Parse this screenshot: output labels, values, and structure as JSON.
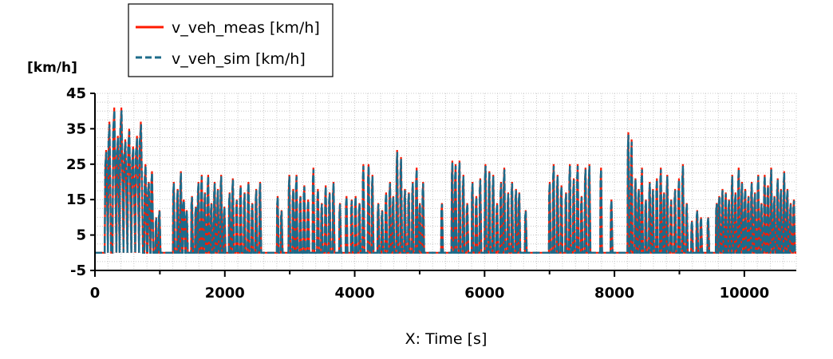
{
  "chart_data": {
    "type": "line",
    "title": "",
    "xlabel": "X: Time [s]",
    "ylabel": "[km/h]",
    "xlim": [
      0,
      10800
    ],
    "ylim": [
      -5,
      45
    ],
    "x_ticks": [
      0,
      2000,
      4000,
      6000,
      8000,
      10000
    ],
    "x_tick_labels": [
      "0",
      "2000",
      "4000",
      "6000",
      "8000",
      "10000"
    ],
    "y_ticks": [
      -5,
      5,
      15,
      25,
      35,
      45
    ],
    "y_tick_labels": [
      "-5",
      "5",
      "15",
      "25",
      "35",
      "45"
    ],
    "grid": true,
    "legend_position": "top-left",
    "colors": {
      "meas": "#ff1a00",
      "sim": "#1d6b8a"
    },
    "series": [
      {
        "name": "v_veh_meas [km/h]",
        "style": "solid"
      },
      {
        "name": "v_veh_sim [km/h]",
        "style": "dashed"
      }
    ],
    "trips": [
      [
        150,
        200,
        29
      ],
      [
        200,
        250,
        37
      ],
      [
        270,
        330,
        41
      ],
      [
        330,
        380,
        33
      ],
      [
        380,
        440,
        41
      ],
      [
        440,
        500,
        32
      ],
      [
        500,
        560,
        35
      ],
      [
        560,
        620,
        30
      ],
      [
        620,
        680,
        33
      ],
      [
        680,
        740,
        37
      ],
      [
        760,
        800,
        25
      ],
      [
        810,
        850,
        20
      ],
      [
        860,
        900,
        23
      ],
      [
        930,
        960,
        10
      ],
      [
        980,
        1010,
        12
      ],
      [
        1200,
        1230,
        20
      ],
      [
        1260,
        1290,
        18
      ],
      [
        1310,
        1340,
        23
      ],
      [
        1350,
        1390,
        15
      ],
      [
        1400,
        1430,
        12
      ],
      [
        1480,
        1510,
        16
      ],
      [
        1540,
        1570,
        13
      ],
      [
        1580,
        1610,
        20
      ],
      [
        1630,
        1660,
        22
      ],
      [
        1680,
        1710,
        17
      ],
      [
        1730,
        1760,
        22
      ],
      [
        1780,
        1810,
        14
      ],
      [
        1830,
        1860,
        20
      ],
      [
        1880,
        1910,
        18
      ],
      [
        1930,
        1960,
        22
      ],
      [
        1980,
        2010,
        13
      ],
      [
        2060,
        2090,
        17
      ],
      [
        2110,
        2140,
        21
      ],
      [
        2170,
        2200,
        15
      ],
      [
        2230,
        2260,
        19
      ],
      [
        2290,
        2320,
        17
      ],
      [
        2350,
        2380,
        20
      ],
      [
        2410,
        2440,
        14
      ],
      [
        2470,
        2500,
        18
      ],
      [
        2530,
        2560,
        20
      ],
      [
        2800,
        2830,
        16
      ],
      [
        2860,
        2890,
        12
      ],
      [
        2980,
        3010,
        22
      ],
      [
        3040,
        3070,
        18
      ],
      [
        3090,
        3120,
        22
      ],
      [
        3150,
        3180,
        16
      ],
      [
        3210,
        3240,
        19
      ],
      [
        3270,
        3300,
        15
      ],
      [
        3350,
        3380,
        24
      ],
      [
        3420,
        3450,
        18
      ],
      [
        3480,
        3510,
        14
      ],
      [
        3540,
        3570,
        19
      ],
      [
        3600,
        3630,
        17
      ],
      [
        3660,
        3690,
        20
      ],
      [
        3760,
        3790,
        14
      ],
      [
        3860,
        3890,
        16
      ],
      [
        3940,
        3970,
        15
      ],
      [
        4000,
        4030,
        16
      ],
      [
        4060,
        4090,
        14
      ],
      [
        4120,
        4150,
        25
      ],
      [
        4200,
        4230,
        25
      ],
      [
        4260,
        4290,
        22
      ],
      [
        4350,
        4380,
        14
      ],
      [
        4410,
        4440,
        12
      ],
      [
        4470,
        4500,
        17
      ],
      [
        4530,
        4560,
        20
      ],
      [
        4580,
        4610,
        16
      ],
      [
        4640,
        4670,
        29
      ],
      [
        4700,
        4730,
        27
      ],
      [
        4760,
        4790,
        18
      ],
      [
        4820,
        4850,
        17
      ],
      [
        4880,
        4910,
        20
      ],
      [
        4940,
        4970,
        24
      ],
      [
        4990,
        5020,
        14
      ],
      [
        5040,
        5070,
        20
      ],
      [
        5330,
        5360,
        14
      ],
      [
        5490,
        5520,
        26
      ],
      [
        5540,
        5570,
        25
      ],
      [
        5600,
        5630,
        26
      ],
      [
        5660,
        5690,
        22
      ],
      [
        5720,
        5750,
        14
      ],
      [
        5800,
        5830,
        20
      ],
      [
        5860,
        5890,
        16
      ],
      [
        5920,
        5950,
        21
      ],
      [
        6000,
        6030,
        25
      ],
      [
        6060,
        6090,
        23
      ],
      [
        6120,
        6150,
        22
      ],
      [
        6180,
        6210,
        14
      ],
      [
        6240,
        6270,
        20
      ],
      [
        6290,
        6320,
        24
      ],
      [
        6350,
        6380,
        17
      ],
      [
        6410,
        6440,
        20
      ],
      [
        6470,
        6500,
        18
      ],
      [
        6520,
        6550,
        17
      ],
      [
        6620,
        6650,
        12
      ],
      [
        6990,
        7020,
        20
      ],
      [
        7050,
        7080,
        25
      ],
      [
        7110,
        7140,
        22
      ],
      [
        7170,
        7200,
        19
      ],
      [
        7240,
        7270,
        17
      ],
      [
        7300,
        7330,
        25
      ],
      [
        7360,
        7390,
        21
      ],
      [
        7420,
        7450,
        25
      ],
      [
        7480,
        7510,
        16
      ],
      [
        7540,
        7570,
        24
      ],
      [
        7600,
        7630,
        25
      ],
      [
        7780,
        7810,
        24
      ],
      [
        7940,
        7970,
        15
      ],
      [
        8200,
        8230,
        34
      ],
      [
        8250,
        8280,
        32
      ],
      [
        8310,
        8340,
        21
      ],
      [
        8360,
        8390,
        18
      ],
      [
        8410,
        8440,
        24
      ],
      [
        8470,
        8500,
        15
      ],
      [
        8530,
        8560,
        20
      ],
      [
        8580,
        8610,
        18
      ],
      [
        8640,
        8670,
        21
      ],
      [
        8700,
        8730,
        24
      ],
      [
        8750,
        8780,
        17
      ],
      [
        8800,
        8830,
        22
      ],
      [
        8860,
        8890,
        15
      ],
      [
        8920,
        8950,
        18
      ],
      [
        8980,
        9010,
        21
      ],
      [
        9040,
        9070,
        25
      ],
      [
        9100,
        9130,
        14
      ],
      [
        9180,
        9210,
        9
      ],
      [
        9260,
        9290,
        12
      ],
      [
        9320,
        9350,
        10
      ],
      [
        9430,
        9460,
        10
      ],
      [
        9560,
        9590,
        14
      ],
      [
        9600,
        9630,
        16
      ],
      [
        9650,
        9680,
        18
      ],
      [
        9700,
        9730,
        17
      ],
      [
        9750,
        9780,
        15
      ],
      [
        9800,
        9830,
        22
      ],
      [
        9850,
        9880,
        17
      ],
      [
        9900,
        9930,
        24
      ],
      [
        9950,
        9980,
        20
      ],
      [
        10000,
        10030,
        18
      ],
      [
        10050,
        10080,
        16
      ],
      [
        10100,
        10130,
        20
      ],
      [
        10150,
        10180,
        17
      ],
      [
        10200,
        10230,
        22
      ],
      [
        10250,
        10280,
        14
      ],
      [
        10300,
        10330,
        22
      ],
      [
        10350,
        10380,
        19
      ],
      [
        10400,
        10430,
        24
      ],
      [
        10450,
        10480,
        16
      ],
      [
        10500,
        10530,
        21
      ],
      [
        10550,
        10580,
        18
      ],
      [
        10600,
        10630,
        23
      ],
      [
        10650,
        10680,
        18
      ],
      [
        10700,
        10730,
        14
      ],
      [
        10750,
        10780,
        15
      ]
    ]
  }
}
